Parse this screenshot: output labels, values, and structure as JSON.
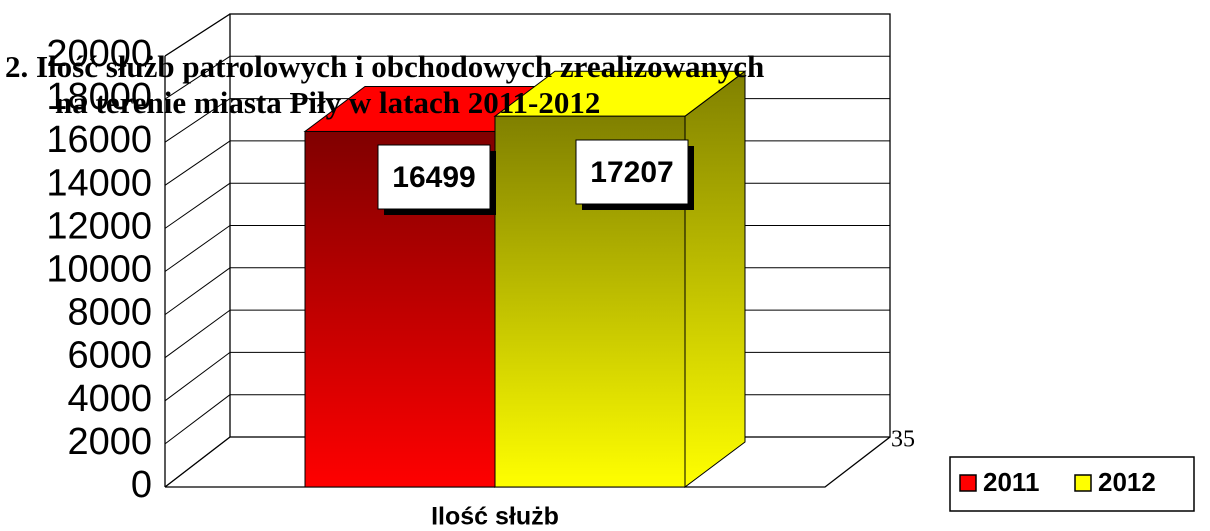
{
  "chart_data": {
    "type": "bar3d",
    "title_lines": [
      "2. Ilość służb patrolowych i obchodowych zrealizowanych",
      "na terenie miasta Piły w latach 2011-2012"
    ],
    "categories": [
      "Ilość służb"
    ],
    "series": [
      {
        "name": "2011",
        "color": "#ff0000",
        "values": [
          16499
        ]
      },
      {
        "name": "2012",
        "color": "#ffff00",
        "values": [
          17207
        ]
      }
    ],
    "ylim": [
      0,
      20000
    ],
    "yticks": [
      0,
      2000,
      4000,
      6000,
      8000,
      10000,
      12000,
      14000,
      16000,
      18000,
      20000
    ],
    "grid": true,
    "legend": "bottom-right"
  },
  "page_number": "35"
}
